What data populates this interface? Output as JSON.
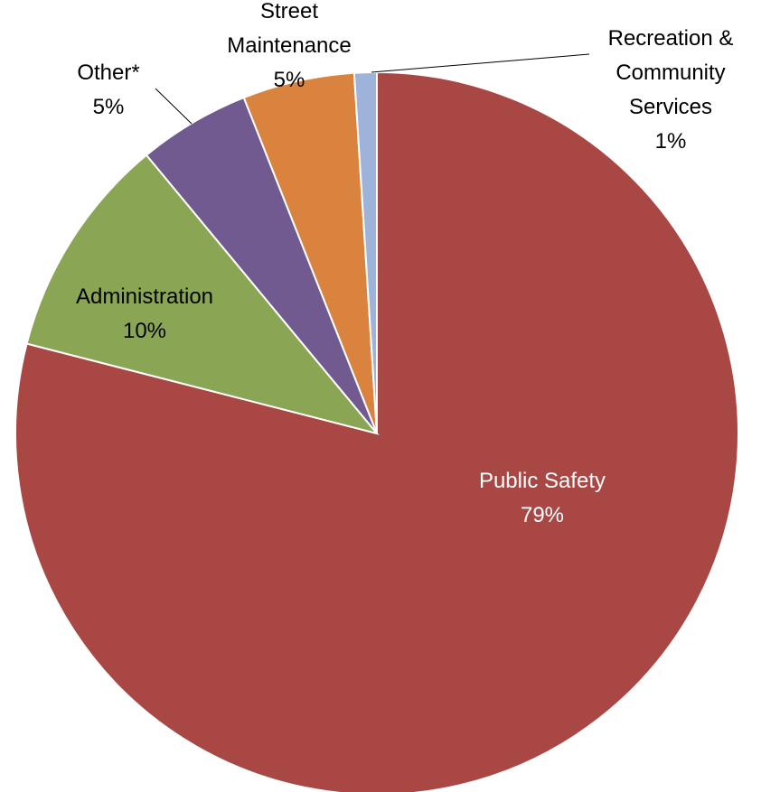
{
  "chart_data": {
    "type": "pie",
    "title": "",
    "start_angle_deg": 0,
    "direction": "clockwise",
    "slices": [
      {
        "label": "Public Safety",
        "value": 79,
        "value_label": "79%",
        "color": "#a84744",
        "label_color": "#ffffff"
      },
      {
        "label": "Administration",
        "value": 10,
        "value_label": "10%",
        "color": "#8aa654",
        "label_color": "#000000"
      },
      {
        "label": "Other*",
        "value": 5,
        "value_label": "5%",
        "color": "#715a90",
        "label_color": "#000000"
      },
      {
        "label": "Street Maintenance",
        "value": 5,
        "value_label": "5%",
        "color": "#d9833e",
        "label_color": "#000000"
      },
      {
        "label": "Recreation & Community Services",
        "value": 1,
        "value_label": "1%",
        "color": "#9db3d9",
        "label_color": "#000000"
      }
    ]
  }
}
